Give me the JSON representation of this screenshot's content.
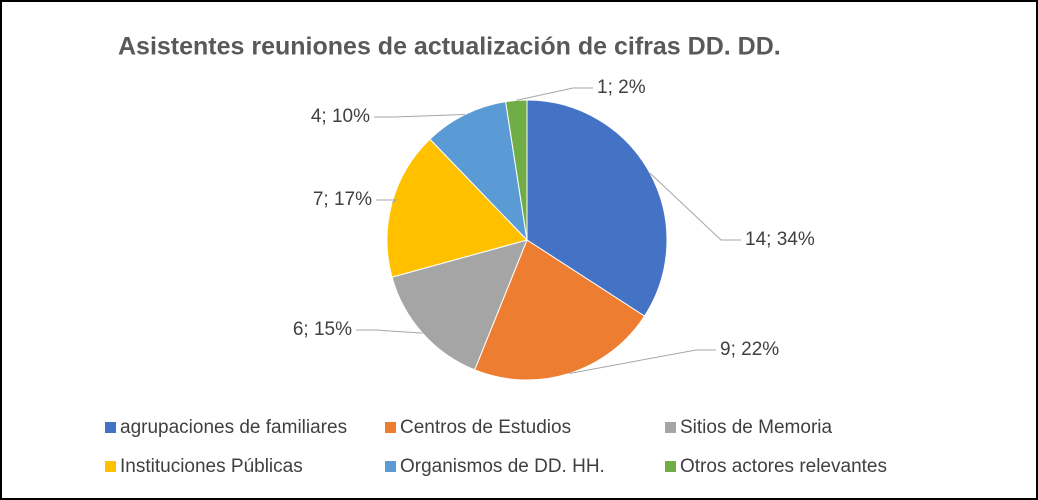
{
  "chart_data": {
    "type": "pie",
    "title": "Asistentes reuniones de actualización de cifras DD. DD.",
    "categories": [
      "agrupaciones de familiares",
      "Centros de Estudios",
      "Sitios de Memoria",
      "Instituciones Públicas",
      "Organismos de DD. HH.",
      "Otros actores relevantes"
    ],
    "values": [
      14,
      9,
      6,
      7,
      4,
      1
    ],
    "value_labels": [
      "14; 34%",
      "9; 22%",
      "6; 15%",
      "7; 17%",
      "4; 10%",
      "1; 2%"
    ],
    "colors": [
      "#4472c4",
      "#ed7d31",
      "#a5a5a5",
      "#ffc000",
      "#5b9bd5",
      "#70ad47"
    ],
    "legend": "bottom"
  }
}
